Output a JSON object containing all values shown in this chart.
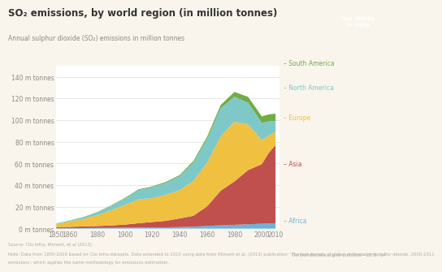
{
  "title": "SO₂ emissions, by world region (in million tonnes)",
  "subtitle": "Annual sulphur dioxide (SO₂) emissions in million tonnes",
  "years": [
    1850,
    1860,
    1870,
    1880,
    1890,
    1900,
    1910,
    1920,
    1930,
    1940,
    1950,
    1960,
    1970,
    1980,
    1990,
    2000,
    2005,
    2010
  ],
  "Africa": [
    0.3,
    0.4,
    0.5,
    0.6,
    0.7,
    0.9,
    1.0,
    1.1,
    1.2,
    1.4,
    1.8,
    2.5,
    3.0,
    3.5,
    4.0,
    4.5,
    4.8,
    5.0
  ],
  "Asia": [
    1.0,
    1.2,
    1.5,
    1.8,
    2.2,
    2.8,
    4.0,
    5.0,
    6.0,
    8.0,
    10.0,
    18.0,
    32.0,
    40.0,
    50.0,
    55.0,
    65.0,
    72.0
  ],
  "Europe": [
    3.0,
    5.0,
    7.0,
    10.0,
    14.0,
    18.0,
    22.0,
    22.0,
    24.0,
    26.0,
    32.0,
    40.0,
    50.0,
    55.0,
    42.0,
    22.0,
    16.0,
    12.0
  ],
  "North America": [
    0.5,
    0.8,
    1.5,
    2.5,
    4.0,
    6.0,
    8.5,
    10.0,
    11.0,
    13.0,
    17.0,
    22.0,
    26.0,
    23.0,
    20.0,
    16.0,
    13.0,
    10.0
  ],
  "South America": [
    0.1,
    0.2,
    0.3,
    0.4,
    0.5,
    0.6,
    0.7,
    0.8,
    0.9,
    1.0,
    1.5,
    2.0,
    3.0,
    4.5,
    5.5,
    6.0,
    6.5,
    7.0
  ],
  "colors": {
    "Africa": "#6ab4dc",
    "Asia": "#c0504d",
    "Europe": "#f0c040",
    "North America": "#7ec8c8",
    "South America": "#70ad47"
  },
  "ylim": [
    0,
    150
  ],
  "yticks": [
    0,
    20,
    40,
    60,
    80,
    100,
    120,
    140
  ],
  "ytick_labels": [
    "0 m tonnes",
    "20 m tonnes",
    "40 m tonnes",
    "60 m tonnes",
    "80 m tonnes",
    "100 m tonnes",
    "120 m tonnes",
    "140 m tonnes"
  ],
  "xticks": [
    1850,
    1860,
    1880,
    1900,
    1920,
    1940,
    1960,
    1980,
    2000,
    2010
  ],
  "source_text": "Source: Clio Infra; Klimont, et al (2013)\nNote: Data from 1850-2000 based on Clio Infra datasets. Data extended to 2010 using data from Klimont et al. (2013) publication: 'The last decade of global anthropogenic sulfur dioxide: 2000-2011\nemissions', which applies the same methodology for emissions estimation.",
  "url_text": "OurWorldInData.org/air-pollution • CC BY-SA",
  "bg_color": "#faf5ec",
  "plot_bg_color": "#ffffff",
  "grid_color": "#e8e8e8",
  "logo_bg": "#c0392b"
}
